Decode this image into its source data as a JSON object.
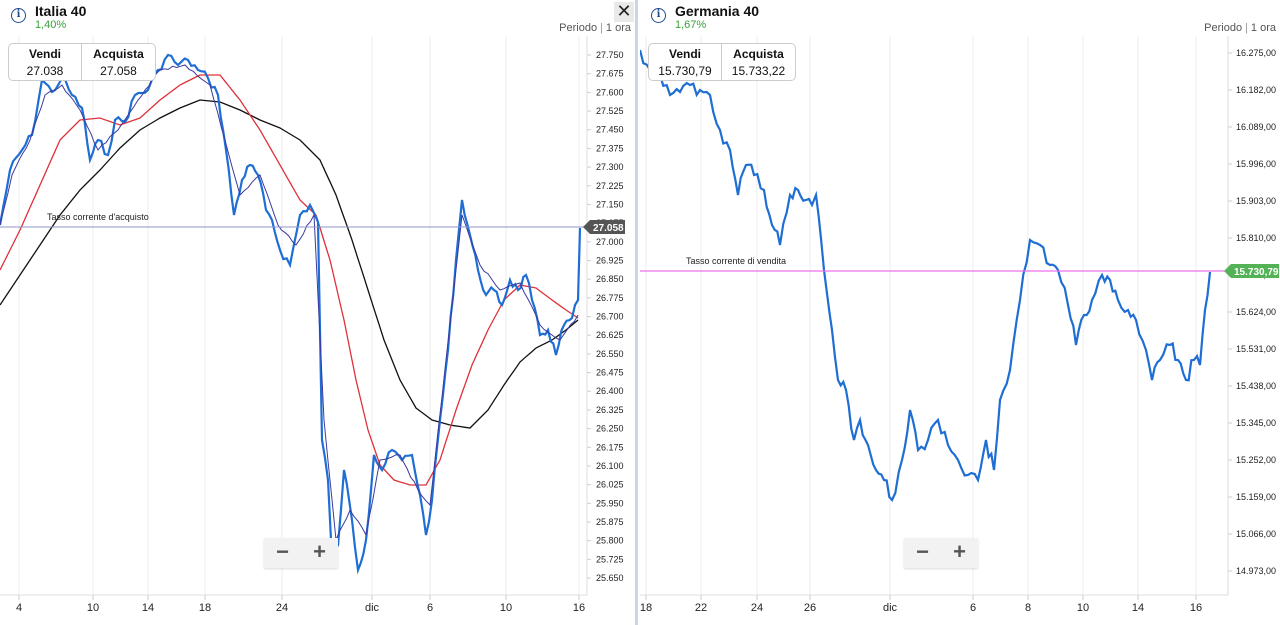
{
  "panels": [
    {
      "title": "Italia 40",
      "change": "1,40%",
      "period_label": "Periodo",
      "period_value": "1 ora",
      "sell_label": "Vendi",
      "sell_value": "27.038",
      "buy_label": "Acquista",
      "buy_value": "27.058",
      "rate_line_label": "Tasso corrente d'acquisto",
      "rate_tag": "27.058",
      "close_label": "✕",
      "zoom_out": "−",
      "zoom_in": "+",
      "colors": {
        "price": "#1f6ed4",
        "ma_red": "#e0313a",
        "ma_black": "#111111",
        "ma_thin": "#3a3aa0",
        "rate_line": "#8c95c9",
        "rate_tag_bg": "#555555"
      },
      "y_ticks": [
        "27.750",
        "27.675",
        "27.600",
        "27.525",
        "27.450",
        "27.375",
        "27.300",
        "27.225",
        "27.150",
        "27.075",
        "27.000",
        "26.925",
        "26.850",
        "26.775",
        "26.700",
        "26.625",
        "26.550",
        "26.475",
        "26.400",
        "26.325",
        "26.250",
        "26.175",
        "26.100",
        "26.025",
        "25.950",
        "25.875",
        "25.800",
        "25.725",
        "25.650"
      ],
      "x_ticks": [
        "4",
        "10",
        "14",
        "18",
        "24",
        "dic",
        "6",
        "10",
        "16"
      ]
    },
    {
      "title": "Germania 40",
      "change": "1,67%",
      "period_label": "Periodo",
      "period_value": "1 ora",
      "sell_label": "Vendi",
      "sell_value": "15.730,79",
      "buy_label": "Acquista",
      "buy_value": "15.733,22",
      "rate_line_label": "Tasso corrente di vendita",
      "rate_tag": "15.730,79",
      "close_label": "✕",
      "zoom_out": "−",
      "zoom_in": "+",
      "colors": {
        "price": "#1f6ed4",
        "rate_line": "#ee6fee",
        "rate_tag_bg": "#52b255"
      },
      "y_ticks": [
        "16.275,00",
        "16.182,00",
        "16.089,00",
        "15.996,00",
        "15.903,00",
        "15.810,00",
        "15.717,00",
        "15.624,00",
        "15.531,00",
        "15.438,00",
        "15.345,00",
        "15.252,00",
        "15.159,00",
        "15.066,00",
        "14.973,00"
      ],
      "x_ticks": [
        "18",
        "22",
        "24",
        "26",
        "dic",
        "6",
        "8",
        "10",
        "14",
        "16"
      ]
    }
  ]
}
